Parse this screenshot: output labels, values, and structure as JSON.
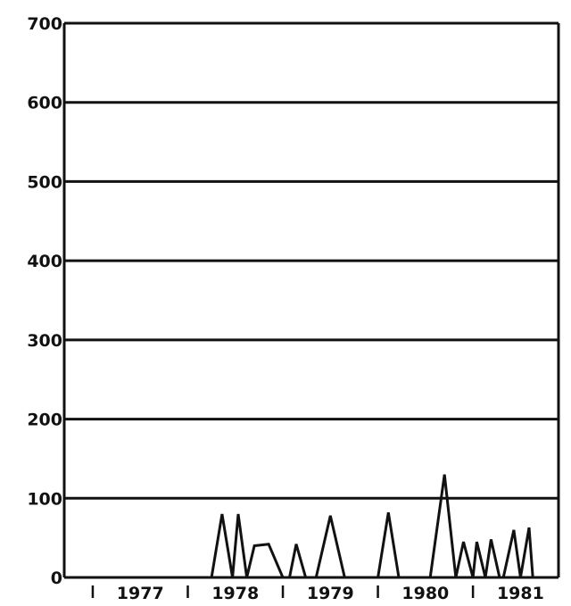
{
  "chart_data": {
    "type": "line",
    "title": "",
    "xlabel": "",
    "ylabel": "",
    "ylim": [
      0,
      700
    ],
    "yticks": [
      0,
      100,
      200,
      300,
      400,
      500,
      600,
      700
    ],
    "ytick_labels": [
      "0",
      "100",
      "200",
      "300",
      "400",
      "500",
      "600",
      "700"
    ],
    "xlim": [
      1976.6,
      1981.8
    ],
    "year_dividers": [
      1976.9,
      1977.9,
      1978.9,
      1979.9,
      1980.9
    ],
    "year_labels": [
      {
        "label": "1977",
        "x": 1977.4
      },
      {
        "label": "1978",
        "x": 1978.4
      },
      {
        "label": "1979",
        "x": 1979.4
      },
      {
        "label": "1980",
        "x": 1980.4
      },
      {
        "label": "1981",
        "x": 1981.4
      }
    ],
    "grid": true,
    "legend": "none",
    "colors": {
      "line": "#111111",
      "grid": "#111111",
      "background": "#ffffff"
    },
    "series": [
      {
        "x": [
          1976.7,
          1978.15,
          1978.26,
          1978.37,
          1978.43,
          1978.52,
          1978.6,
          1978.75,
          1978.9,
          1978.97,
          1979.04,
          1979.14,
          1979.25,
          1979.4,
          1979.55,
          1979.9,
          1980.01,
          1980.12,
          1980.45,
          1980.6,
          1980.72,
          1980.8,
          1980.9,
          1980.94,
          1981.03,
          1981.09,
          1981.18,
          1981.22,
          1981.33,
          1981.4,
          1981.49,
          1981.53,
          1981.62,
          1981.8
        ],
        "y": [
          0,
          0,
          80,
          0,
          80,
          0,
          40,
          42,
          0,
          0,
          42,
          0,
          0,
          78,
          0,
          0,
          82,
          0,
          0,
          130,
          0,
          45,
          0,
          45,
          0,
          48,
          0,
          0,
          60,
          0,
          63,
          0,
          0,
          0
        ]
      }
    ]
  }
}
